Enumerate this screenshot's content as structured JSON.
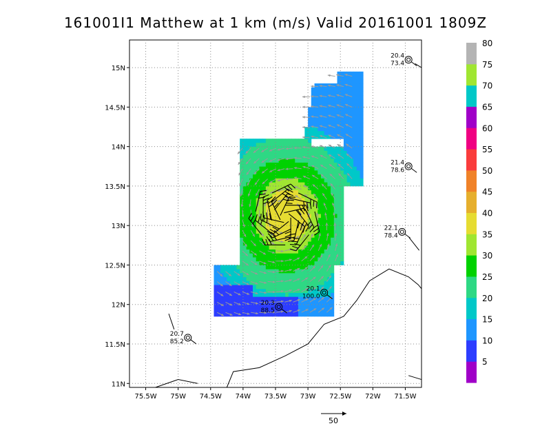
{
  "chart_data": {
    "type": "map",
    "title": "161001I1 Matthew at 1 km (m/s) Valid 20161001  1809Z",
    "xlim": [
      -75.75,
      -71.25
    ],
    "ylim": [
      10.95,
      15.35
    ],
    "x_ticks": [
      {
        "value": -75.5,
        "label": "75.5W"
      },
      {
        "value": -75.0,
        "label": "75W"
      },
      {
        "value": -74.5,
        "label": "74.5W"
      },
      {
        "value": -74.0,
        "label": "74W"
      },
      {
        "value": -73.5,
        "label": "73.5W"
      },
      {
        "value": -73.0,
        "label": "73W"
      },
      {
        "value": -72.5,
        "label": "72.5W"
      },
      {
        "value": -72.0,
        "label": "72W"
      },
      {
        "value": -71.5,
        "label": "71.5W"
      }
    ],
    "y_ticks": [
      {
        "value": 11.0,
        "label": "11N"
      },
      {
        "value": 11.5,
        "label": "11.5N"
      },
      {
        "value": 12.0,
        "label": "12N"
      },
      {
        "value": 12.5,
        "label": "12.5N"
      },
      {
        "value": 13.0,
        "label": "13N"
      },
      {
        "value": 13.5,
        "label": "13.5N"
      },
      {
        "value": 14.0,
        "label": "14N"
      },
      {
        "value": 14.5,
        "label": "14.5N"
      },
      {
        "value": 15.0,
        "label": "15N"
      }
    ],
    "grid": true,
    "storm_center": {
      "lon": -73.35,
      "lat": 13.1
    },
    "colorbar": {
      "labels": [
        "5",
        "10",
        "15",
        "20",
        "25",
        "30",
        "35",
        "40",
        "45",
        "50",
        "55",
        "60",
        "65",
        "70",
        "75",
        "80"
      ],
      "colors": [
        "#a000c8",
        "#2d3dff",
        "#1e96ff",
        "#00c8c8",
        "#2ed884",
        "#00d200",
        "#a0e632",
        "#e6dc32",
        "#e6af2d",
        "#f08228",
        "#fa3c3c",
        "#f00082",
        "#a000c8",
        "#00c8c8",
        "#a0e632",
        "#b4b4b4"
      ],
      "top_color": "#b4b4b4"
    },
    "observations": [
      {
        "lon": -71.45,
        "lat": 15.1,
        "sst": "20.4",
        "pressure": "73.4"
      },
      {
        "lon": -71.45,
        "lat": 13.75,
        "sst": "21.4",
        "pressure": "78.6"
      },
      {
        "lon": -71.55,
        "lat": 12.92,
        "sst": "22.1",
        "pressure": "78.4"
      },
      {
        "lon": -72.75,
        "lat": 12.15,
        "sst": "20.1",
        "pressure": "100.0"
      },
      {
        "lon": -73.45,
        "lat": 11.97,
        "sst": "20.3",
        "pressure": "88.5"
      },
      {
        "lon": -74.85,
        "lat": 11.58,
        "sst": "20.7",
        "pressure": "85.2"
      }
    ],
    "reference_vector": {
      "label": "50"
    }
  }
}
